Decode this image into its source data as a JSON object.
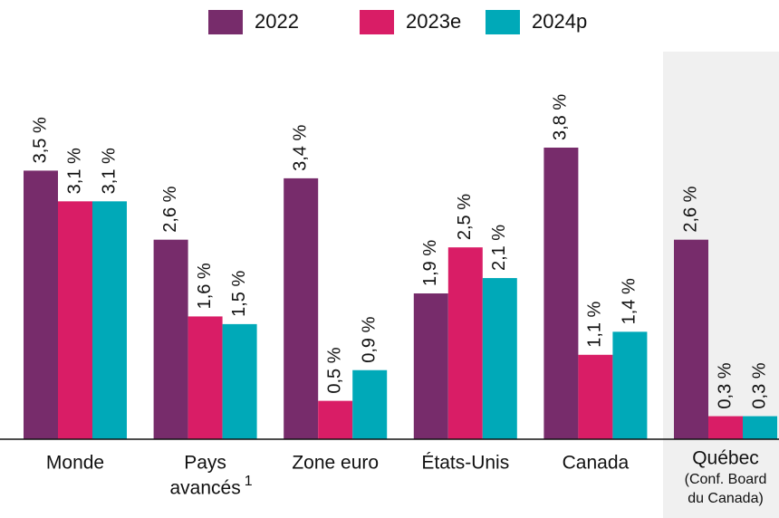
{
  "chart_data": {
    "type": "bar",
    "categories": [
      [
        "Monde"
      ],
      [
        "Pays",
        "avancés"
      ],
      [
        "Zone euro"
      ],
      [
        "États-Unis"
      ],
      [
        "Canada"
      ],
      [
        "Québec"
      ]
    ],
    "category_footnotes": [
      null,
      "1",
      null,
      null,
      null,
      null
    ],
    "category_notes": [
      null,
      null,
      null,
      null,
      null,
      [
        "(Conf. Board",
        "du Canada)"
      ]
    ],
    "series": [
      {
        "name": "2022",
        "color": "#772c6b",
        "values": [
          3.5,
          2.6,
          3.4,
          1.9,
          3.8,
          2.6
        ],
        "value_labels": [
          "3,5 %",
          "2,6 %",
          "3,4 %",
          "1,9 %",
          "3,8 %",
          "2,6 %"
        ]
      },
      {
        "name": "2023e",
        "color": "#d91d66",
        "values": [
          3.1,
          1.6,
          0.5,
          2.5,
          1.1,
          0.3
        ],
        "value_labels": [
          "3,1 %",
          "1,6 %",
          "0,5 %",
          "2,5 %",
          "1,1 %",
          "0,3 %"
        ]
      },
      {
        "name": "2024p",
        "color": "#00a9b8",
        "values": [
          3.1,
          1.5,
          0.9,
          2.1,
          1.4,
          0.3
        ],
        "value_labels": [
          "3,1 %",
          "1,5 %",
          "0,9 %",
          "2,1 %",
          "1,4 %",
          "0,3 %"
        ]
      }
    ],
    "legend": "top"
  }
}
